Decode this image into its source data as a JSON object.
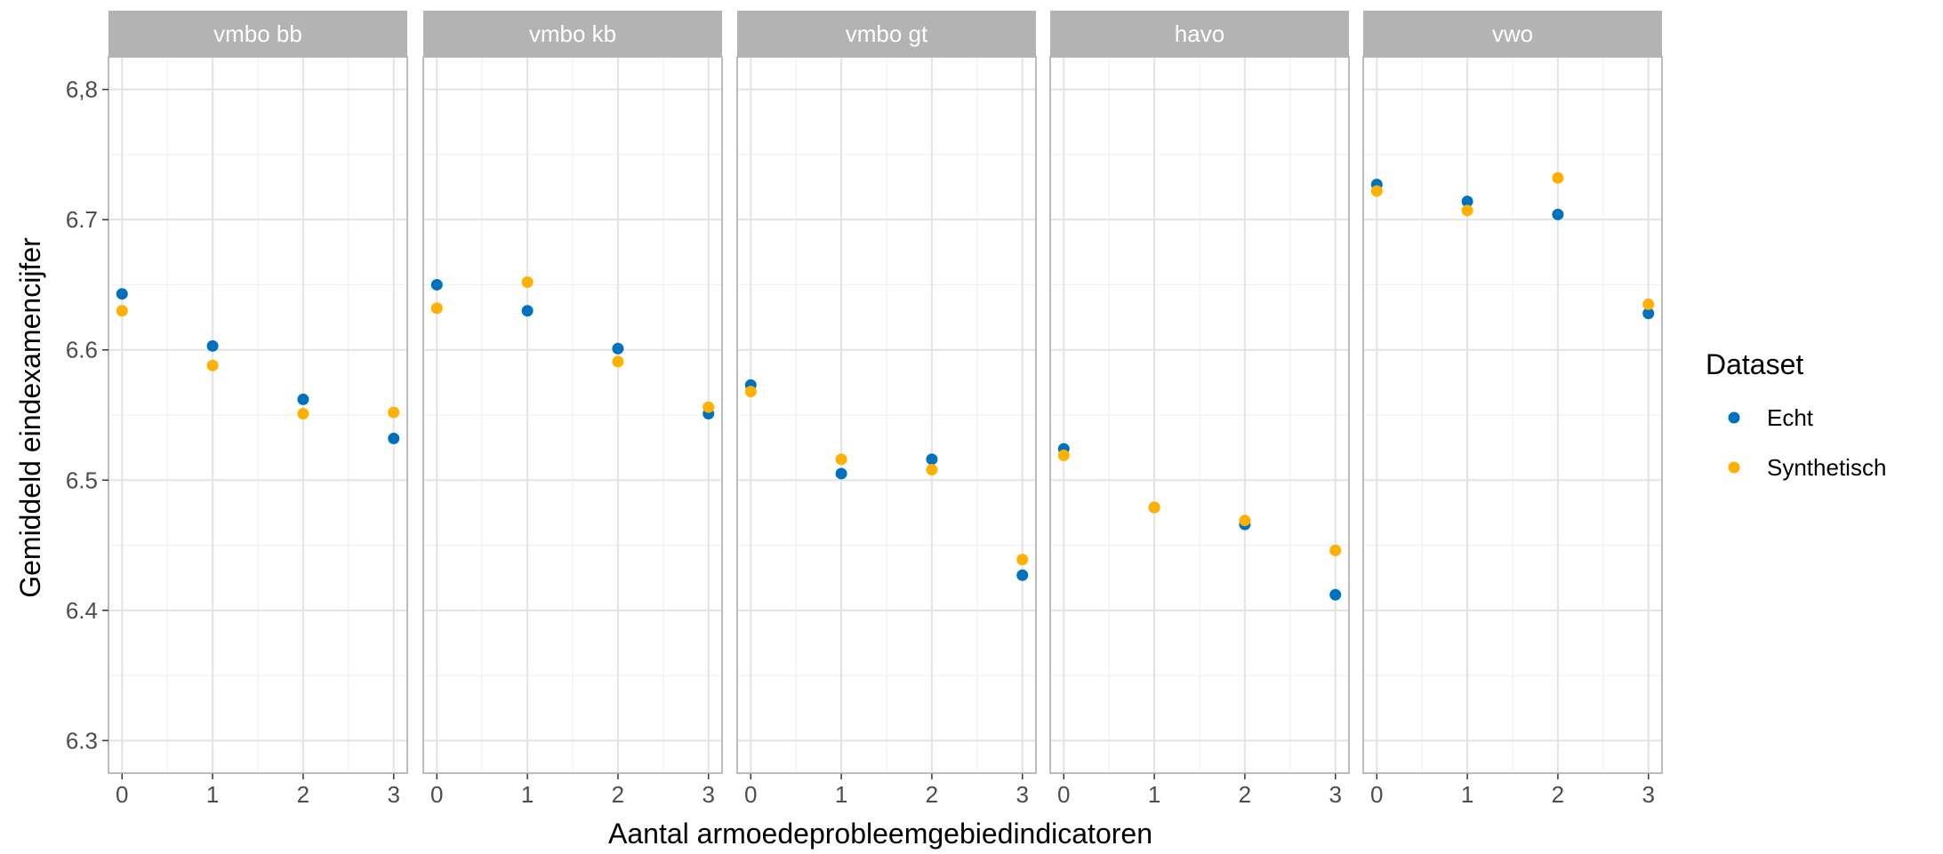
{
  "chart_data": {
    "type": "scatter",
    "facet_label": "",
    "panels": [
      {
        "name": "vmbo bb",
        "series": [
          {
            "name": "Echt",
            "values": [
              6.643,
              6.603,
              6.562,
              6.532
            ]
          },
          {
            "name": "Synthetisch",
            "values": [
              6.63,
              6.588,
              6.551,
              6.552
            ]
          }
        ]
      },
      {
        "name": "vmbo kb",
        "series": [
          {
            "name": "Echt",
            "values": [
              6.65,
              6.63,
              6.601,
              6.551
            ]
          },
          {
            "name": "Synthetisch",
            "values": [
              6.632,
              6.652,
              6.591,
              6.556
            ]
          }
        ]
      },
      {
        "name": "vmbo gt",
        "series": [
          {
            "name": "Echt",
            "values": [
              6.573,
              6.505,
              6.516,
              6.427
            ]
          },
          {
            "name": "Synthetisch",
            "values": [
              6.568,
              6.516,
              6.508,
              6.439
            ]
          }
        ]
      },
      {
        "name": "havo",
        "series": [
          {
            "name": "Echt",
            "values": [
              6.524,
              6.479,
              6.466,
              6.412
            ]
          },
          {
            "name": "Synthetisch",
            "values": [
              6.519,
              6.479,
              6.469,
              6.446
            ]
          }
        ]
      },
      {
        "name": "vwo",
        "series": [
          {
            "name": "Echt",
            "values": [
              6.727,
              6.714,
              6.704,
              6.628
            ]
          },
          {
            "name": "Synthetisch",
            "values": [
              6.722,
              6.707,
              6.732,
              6.635
            ]
          }
        ]
      }
    ],
    "x": [
      0,
      1,
      2,
      3
    ],
    "x_tick_labels": [
      "0",
      "1",
      "2",
      "3"
    ],
    "xlim": [
      -0.15,
      3.15
    ],
    "ylim": [
      6.275,
      6.825
    ],
    "y_ticks": [
      6.3,
      6.4,
      6.5,
      6.6,
      6.7,
      6.8
    ],
    "y_tick_labels": [
      "6.3",
      "6.4",
      "6.5",
      "6.6",
      "6.7",
      "6,8"
    ],
    "xlabel": "Aantal armoedeprobleemgebiedindicatoren",
    "ylabel": "Gemiddeld eindexamencijfer",
    "legend": {
      "title": "Dataset",
      "position": "right",
      "entries": [
        {
          "name": "Echt",
          "color": "#0072bd"
        },
        {
          "name": "Synthetisch",
          "color": "#ffb000"
        }
      ]
    },
    "grid": true
  }
}
